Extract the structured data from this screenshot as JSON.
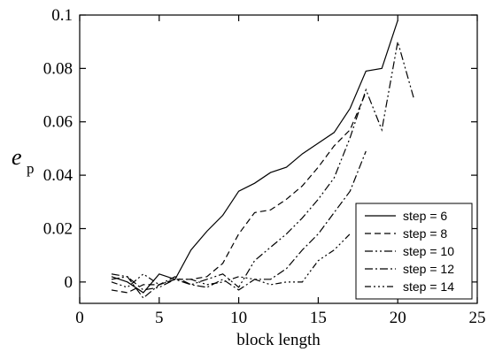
{
  "chart_data": {
    "type": "line",
    "xlabel": "block length",
    "ylabel": "e",
    "ylabel_subscript": "p",
    "xlim": [
      0,
      25
    ],
    "ylim": [
      -0.008,
      0.1
    ],
    "xticks": [
      0,
      5,
      10,
      15,
      20,
      25
    ],
    "yticks": [
      0,
      0.02,
      0.04,
      0.06,
      0.08,
      0.1
    ],
    "ytick_labels": [
      "0",
      "0.02",
      "0.04",
      "0.06",
      "0.08",
      "0.1"
    ],
    "grid": false,
    "legend_position": "bottom-right",
    "series": [
      {
        "name": "step = 6",
        "dash": "solid",
        "x": [
          2,
          3,
          4,
          5,
          6,
          7,
          8,
          9,
          10,
          11,
          12,
          13,
          14,
          15,
          16,
          17,
          18,
          19,
          20
        ],
        "y": [
          0.002,
          0.0,
          -0.004,
          0.003,
          0.001,
          0.012,
          0.019,
          0.025,
          0.034,
          0.037,
          0.041,
          0.043,
          0.048,
          0.052,
          0.056,
          0.065,
          0.079,
          0.08,
          0.098
        ]
      },
      {
        "name": "step = 8",
        "dash": "dashed",
        "x": [
          2,
          3,
          4,
          5,
          6,
          7,
          8,
          9,
          10,
          11,
          12,
          13,
          14,
          15,
          16,
          17,
          18
        ],
        "y": [
          -0.003,
          -0.004,
          -0.001,
          -0.001,
          0.001,
          0.001,
          0.002,
          0.007,
          0.018,
          0.026,
          0.027,
          0.031,
          0.036,
          0.043,
          0.051,
          0.057,
          0.071
        ]
      },
      {
        "name": "step = 10",
        "dash": "dashdotdot",
        "x": [
          2,
          3,
          4,
          5,
          6,
          7,
          8,
          9,
          10,
          11,
          12,
          13,
          14,
          15,
          16,
          17,
          18,
          19,
          20,
          21
        ],
        "y": [
          0.001,
          0.002,
          -0.003,
          -0.002,
          0.001,
          -0.001,
          0.001,
          0.003,
          -0.002,
          0.008,
          0.013,
          0.018,
          0.024,
          0.031,
          0.039,
          0.054,
          0.072,
          0.057,
          0.09,
          0.069
        ]
      },
      {
        "name": "step = 12",
        "dash": "dashdot",
        "x": [
          2,
          3,
          4,
          5,
          6,
          7,
          8,
          9,
          10,
          11,
          12,
          13,
          14,
          15,
          16,
          17,
          18
        ],
        "y": [
          0.003,
          0.002,
          -0.006,
          -0.001,
          0.002,
          -0.001,
          -0.002,
          0.001,
          -0.003,
          0.001,
          0.001,
          0.005,
          0.012,
          0.018,
          0.026,
          0.034,
          0.049
        ]
      },
      {
        "name": "step = 14",
        "dash": "dashdotdotdot",
        "x": [
          2,
          3,
          4,
          5,
          6,
          7,
          8,
          9,
          10,
          11,
          12,
          13,
          14,
          15,
          16,
          17
        ],
        "y": [
          0.0,
          -0.002,
          0.003,
          -0.001,
          0.001,
          0.001,
          -0.001,
          0.0,
          0.002,
          0.001,
          -0.001,
          0.0,
          0.0,
          0.008,
          0.012,
          0.018
        ]
      }
    ]
  }
}
